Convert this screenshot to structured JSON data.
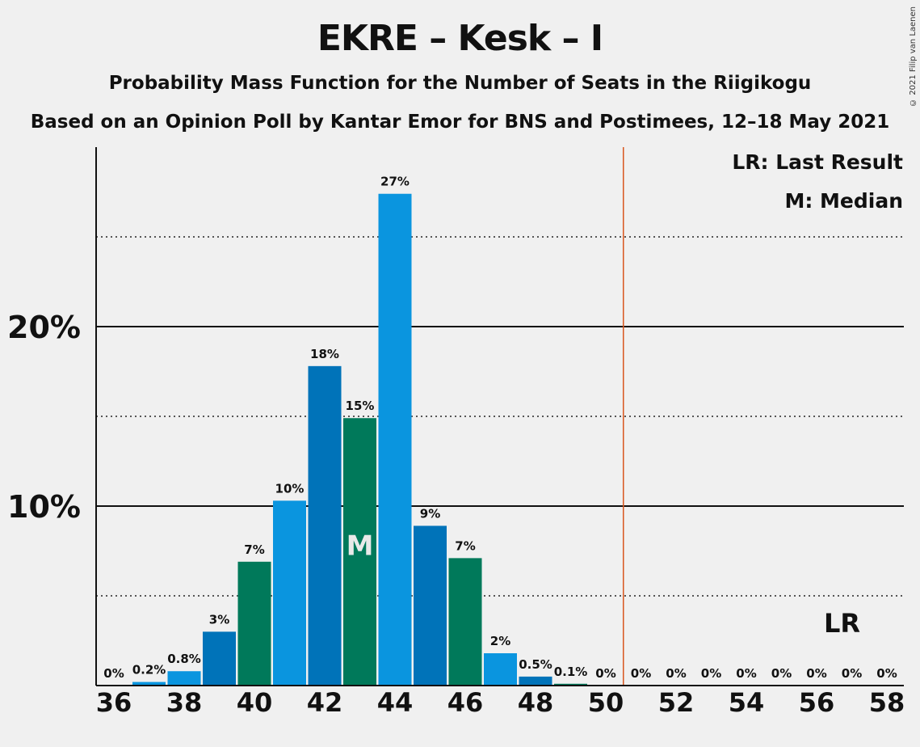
{
  "title": "EKRE – Kesk – I",
  "subtitle1": "Probability Mass Function for the Number of Seats in the Riigikogu",
  "subtitle2": "Based on an Opinion Poll by Kantar Emor for BNS and Postimees, 12–18 May 2021",
  "copyright": "© 2021 Filip van Laenen",
  "legend": {
    "last_result": "LR: Last Result",
    "median": "M: Median"
  },
  "markers": {
    "median_label": "M",
    "last_result_label": "LR"
  },
  "colors": {
    "blue_light": "#0a95df",
    "blue_dark": "#0073b9",
    "green": "#00795a",
    "majority_line": "#d9561e",
    "axis": "#111111",
    "background": "#f0f0f0"
  },
  "chart_data": {
    "type": "bar",
    "x": [
      36,
      37,
      38,
      39,
      40,
      41,
      42,
      43,
      44,
      45,
      46,
      47,
      48,
      49,
      50,
      51,
      52,
      53,
      54,
      55,
      56,
      57,
      58
    ],
    "values": [
      0,
      0.2,
      0.8,
      3.0,
      6.9,
      10.3,
      17.8,
      14.9,
      27.4,
      8.9,
      7.1,
      1.8,
      0.5,
      0.1,
      0,
      0,
      0,
      0,
      0,
      0,
      0,
      0,
      0
    ],
    "labels": [
      "0%",
      "0.2%",
      "0.8%",
      "3%",
      "7%",
      "10%",
      "18%",
      "15%",
      "27%",
      "9%",
      "7%",
      "2%",
      "0.5%",
      "0.1%",
      "0%",
      "0%",
      "0%",
      "0%",
      "0%",
      "0%",
      "0%",
      "0%",
      "0%"
    ],
    "bar_colors": [
      "blue_light",
      "blue_light",
      "blue_light",
      "blue_dark",
      "green",
      "blue_light",
      "blue_dark",
      "green",
      "blue_light",
      "blue_dark",
      "green",
      "blue_light",
      "blue_dark",
      "green",
      "blue_light",
      "blue_dark",
      "green",
      "blue_light",
      "blue_dark",
      "green",
      "blue_light",
      "blue_dark",
      "green"
    ],
    "x_tick_labels": [
      "36",
      "38",
      "40",
      "42",
      "44",
      "46",
      "48",
      "50",
      "52",
      "54",
      "56",
      "58"
    ],
    "x_ticks": [
      36,
      38,
      40,
      42,
      44,
      46,
      48,
      50,
      52,
      54,
      56,
      58
    ],
    "y_tick_labels": [
      "10%",
      "20%"
    ],
    "y_ticks": [
      10,
      20
    ],
    "y_dotted_gridlines": [
      5,
      15,
      25
    ],
    "ylim": [
      0,
      30
    ],
    "median": 43,
    "majority_threshold": 50.5,
    "last_result": 57
  }
}
